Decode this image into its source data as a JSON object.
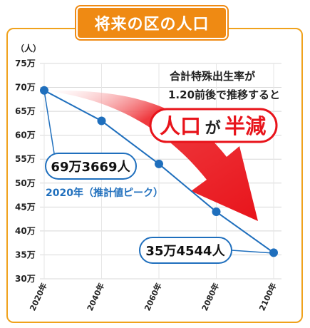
{
  "title": "将来の区の人口",
  "chart_data": {
    "type": "line",
    "y_unit": "（人）",
    "categories": [
      "2020年",
      "2040年",
      "2060年",
      "2080年",
      "2100年"
    ],
    "x": [
      2020,
      2040,
      2060,
      2080,
      2100
    ],
    "values": [
      693669,
      630000,
      540000,
      440000,
      354544
    ],
    "ylim": [
      300000,
      750000
    ],
    "y_ticks": [
      "75万",
      "70万",
      "65万",
      "60万",
      "55万",
      "50万",
      "45万",
      "40万",
      "35万",
      "30万"
    ],
    "line_color": "#1f6fbd",
    "grid": true
  },
  "annotations": {
    "start_value": "69万3669人",
    "start_note": "2020年（推計値ピーク）",
    "end_value": "35万4544人",
    "tfr_line1": "合計特殊出生率が",
    "tfr_line2": "1.20前後で推移すると",
    "headline_a": "人口",
    "headline_b": "が",
    "headline_c": "半減"
  },
  "colors": {
    "accent": "#ef8a13",
    "arrow": "#e8141b",
    "line": "#1f6fbd"
  }
}
